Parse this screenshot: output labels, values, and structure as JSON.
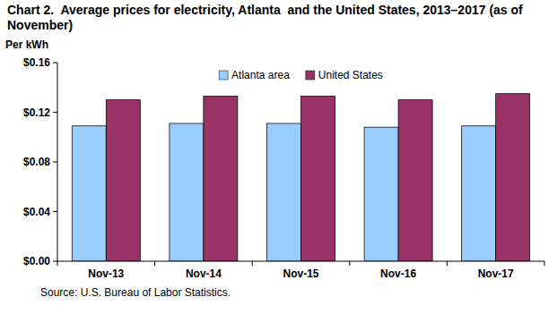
{
  "chart_data": {
    "type": "bar",
    "title": "Chart 2.  Average prices for electricity, Atlanta  and the United States, 2013–2017 (as of November)",
    "y_label": "Per kWh",
    "source": "Source: U.S. Bureau of Labor Statistics.",
    "categories": [
      "Nov-13",
      "Nov-14",
      "Nov-15",
      "Nov-16",
      "Nov-17"
    ],
    "series": [
      {
        "name": "Atlanta area",
        "color": "#99ccff",
        "values": [
          0.109,
          0.111,
          0.111,
          0.108,
          0.109
        ]
      },
      {
        "name": "United States",
        "color": "#993366",
        "values": [
          0.13,
          0.133,
          0.133,
          0.13,
          0.135
        ]
      }
    ],
    "ylim": [
      0,
      0.16
    ],
    "yticks": [
      {
        "value": 0,
        "label": "$0.00"
      },
      {
        "value": 0.04,
        "label": "$0.04"
      },
      {
        "value": 0.08,
        "label": "$0.08"
      },
      {
        "value": 0.12,
        "label": "$0.12"
      },
      {
        "value": 0.16,
        "label": "$0.16"
      }
    ],
    "grid": false,
    "legend": "top"
  }
}
